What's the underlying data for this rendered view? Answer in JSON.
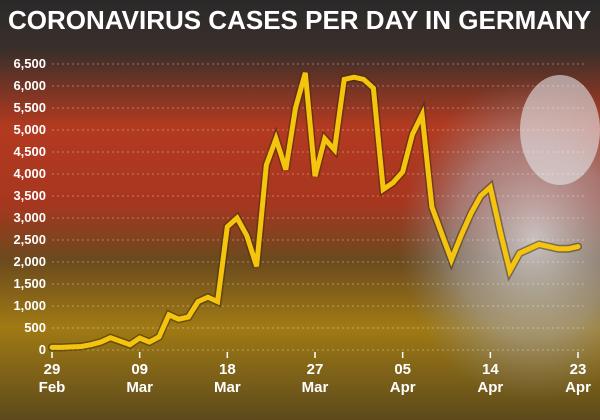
{
  "chart_data": {
    "type": "line",
    "title": "CORONAVIRUS CASES PER DAY IN GERMANY",
    "xlabel": "",
    "ylabel": "",
    "ylim": [
      0,
      6500
    ],
    "yticks": [
      "0",
      "500",
      "1,000",
      "1,500",
      "2,000",
      "2,500",
      "3,000",
      "3,500",
      "4,000",
      "4,500",
      "5,000",
      "5,500",
      "6,000",
      "6,500"
    ],
    "xticks": [
      {
        "day": "29",
        "month": "Feb",
        "date": "2020-02-29"
      },
      {
        "day": "09",
        "month": "Mar",
        "date": "2020-03-09"
      },
      {
        "day": "18",
        "month": "Mar",
        "date": "2020-03-18"
      },
      {
        "day": "27",
        "month": "Mar",
        "date": "2020-03-27"
      },
      {
        "day": "05",
        "month": "Apr",
        "date": "2020-04-05"
      },
      {
        "day": "14",
        "month": "Apr",
        "date": "2020-04-14"
      },
      {
        "day": "23",
        "month": "Apr",
        "date": "2020-04-23"
      }
    ],
    "grid": true,
    "line_color": "#f5c40f",
    "series": [
      {
        "name": "",
        "x": [
          "2020-02-29",
          "2020-03-01",
          "2020-03-02",
          "2020-03-03",
          "2020-03-04",
          "2020-03-05",
          "2020-03-06",
          "2020-03-07",
          "2020-03-08",
          "2020-03-09",
          "2020-03-10",
          "2020-03-11",
          "2020-03-12",
          "2020-03-13",
          "2020-03-14",
          "2020-03-15",
          "2020-03-16",
          "2020-03-17",
          "2020-03-18",
          "2020-03-19",
          "2020-03-20",
          "2020-03-21",
          "2020-03-22",
          "2020-03-23",
          "2020-03-24",
          "2020-03-25",
          "2020-03-26",
          "2020-03-27",
          "2020-03-28",
          "2020-03-29",
          "2020-03-30",
          "2020-03-31",
          "2020-04-01",
          "2020-04-02",
          "2020-04-03",
          "2020-04-04",
          "2020-04-05",
          "2020-04-06",
          "2020-04-07",
          "2020-04-08",
          "2020-04-09",
          "2020-04-10",
          "2020-04-11",
          "2020-04-12",
          "2020-04-13",
          "2020-04-14",
          "2020-04-15",
          "2020-04-16",
          "2020-04-17",
          "2020-04-18",
          "2020-04-19",
          "2020-04-20",
          "2020-04-21",
          "2020-04-22",
          "2020-04-23"
        ],
        "values": [
          60,
          60,
          70,
          80,
          120,
          180,
          280,
          200,
          120,
          270,
          180,
          300,
          800,
          700,
          750,
          1100,
          1200,
          1100,
          2800,
          3000,
          2600,
          1900,
          4200,
          4800,
          4100,
          5500,
          6300,
          3950,
          4800,
          4550,
          6150,
          6200,
          6150,
          5950,
          3650,
          3800,
          4050,
          4900,
          5350,
          3250,
          2650,
          2050,
          2600,
          3100,
          3500,
          3700,
          2700,
          1800,
          2200,
          2300,
          2400,
          2350,
          2300,
          2300,
          2350
        ]
      }
    ]
  },
  "colors": {
    "flag_black": "#1a1a1a",
    "flag_red": "#c8341c",
    "flag_gold": "#d9a11a",
    "line": "#f5c40f",
    "text": "#ffffff"
  }
}
